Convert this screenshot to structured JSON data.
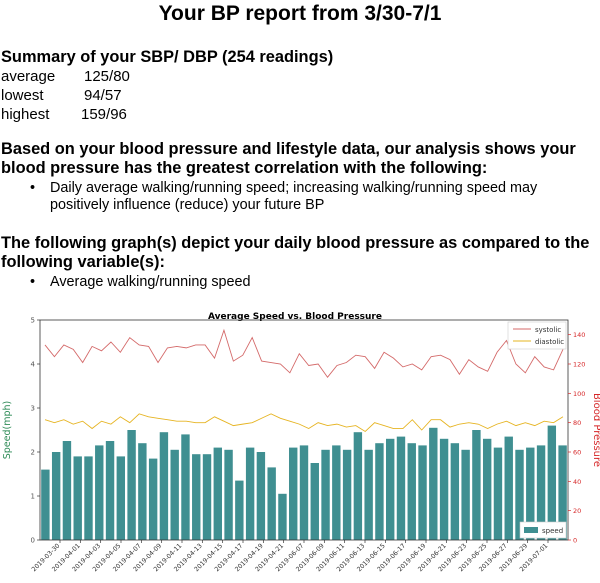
{
  "report": {
    "title": "Your BP report from 3/30-7/1",
    "summary_heading": "Summary of your SBP/ DBP (254 readings)",
    "stats": [
      {
        "label": "average",
        "value": "125/80"
      },
      {
        "label": "lowest",
        "value": "94/57"
      },
      {
        "label": "highest",
        "value": "159/96"
      }
    ],
    "analysis_heading": "Based on your blood pressure and lifestyle data, our analysis shows your blood pressure has the greatest correlation with the following:",
    "analysis_bullet": "Daily average walking/running speed; increasing walking/running speed may positively influence (reduce) your future BP",
    "graph_heading": "The following graph(s) depict your daily blood pressure as compared to the following variable(s):",
    "graph_bullet": "Average walking/running speed",
    "bullet_char": "•"
  },
  "chart_data": {
    "type": "bar",
    "title": "Average Speed vs. Blood Pressure",
    "ylabel_left": "Speed(mph)",
    "ylabel_right": "Blood Pressure",
    "ylim_left": [
      0,
      5
    ],
    "ylim_right": [
      0,
      150
    ],
    "yticks_left": [
      "0",
      "1",
      "2",
      "3",
      "4",
      "5"
    ],
    "yticks_right": [
      "0",
      "20",
      "40",
      "60",
      "80",
      "100",
      "120",
      "140"
    ],
    "grid": false,
    "legend_lines_position": "top-right",
    "legend_bars_position": "bottom-right",
    "colors": {
      "speed": "#3f8f91",
      "systolic": "#d46a6a",
      "diastolic": "#e6b422",
      "left_axis_label": "#2e8b57",
      "right_axis": "#d62728"
    },
    "xticklabels": [
      "2019-03-30",
      "2019-04-01",
      "2019-04-03",
      "2019-04-05",
      "2019-04-07",
      "2019-04-09",
      "2019-04-11",
      "2019-04-13",
      "2019-04-15",
      "2019-04-17",
      "2019-04-19",
      "2019-04-21",
      "2019-06-07",
      "2019-06-09",
      "2019-06-11",
      "2019-06-13",
      "2019-06-15",
      "2019-06-17",
      "2019-06-19",
      "2019-06-21",
      "2019-06-23",
      "2019-06-25",
      "2019-06-27",
      "2019-06-29",
      "2019-07-01"
    ],
    "series": [
      {
        "name": "speed",
        "kind": "bar",
        "values": [
          1.6,
          2.0,
          2.25,
          1.9,
          1.9,
          2.15,
          2.25,
          1.9,
          2.5,
          2.2,
          1.85,
          2.45,
          2.05,
          2.4,
          1.95,
          1.95,
          2.1,
          2.05,
          1.35,
          2.1,
          2.0,
          1.65,
          1.05,
          2.1,
          2.15,
          1.75,
          2.05,
          2.15,
          2.05,
          2.45,
          2.05,
          2.2,
          2.3,
          2.35,
          2.2,
          2.15,
          2.55,
          2.3,
          2.2,
          2.05,
          2.5,
          2.3,
          2.1,
          2.35,
          2.05,
          2.1,
          2.15,
          2.6,
          2.15
        ]
      },
      {
        "name": "systolic",
        "kind": "line",
        "values": [
          133,
          125,
          133,
          130,
          121,
          132,
          129,
          135,
          128,
          138,
          133,
          132,
          121,
          131,
          132,
          131,
          133,
          133,
          124,
          143,
          122,
          126,
          138,
          122,
          121,
          120,
          114,
          127,
          119,
          120,
          111,
          119,
          121,
          126,
          125,
          117,
          128,
          124,
          118,
          120,
          116,
          125,
          126,
          123,
          113,
          123,
          118,
          115,
          128,
          136,
          120,
          114,
          125,
          118,
          116,
          130
        ]
      },
      {
        "name": "diastolic",
        "kind": "line",
        "values": [
          82,
          80,
          82,
          79,
          81,
          76,
          81,
          79,
          84,
          80,
          86,
          84,
          83,
          82,
          81,
          81,
          80,
          80,
          84,
          81,
          78,
          79,
          80,
          83,
          86,
          83,
          81,
          79,
          76,
          80,
          78,
          79,
          77,
          78,
          74,
          80,
          78,
          76,
          76,
          82,
          75,
          82,
          82,
          77,
          79,
          80,
          79,
          76,
          79,
          81,
          78,
          80,
          78,
          81,
          80,
          84
        ]
      }
    ]
  }
}
